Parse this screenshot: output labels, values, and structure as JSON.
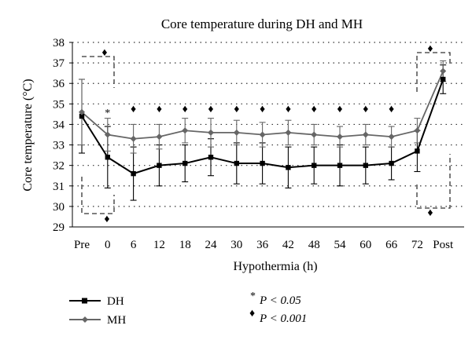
{
  "chart_data": {
    "type": "line",
    "title": "Core temperature during DH and MH",
    "xlabel": "Hypothermia (h)",
    "ylabel": "Core temperature (°C)",
    "categories": [
      "Pre",
      "0",
      "6",
      "12",
      "18",
      "24",
      "30",
      "36",
      "42",
      "48",
      "54",
      "60",
      "66",
      "72",
      "Post"
    ],
    "ylim": [
      29,
      38
    ],
    "yticks": [
      "29",
      "30",
      "31",
      "32",
      "33",
      "34",
      "35",
      "36",
      "37",
      "38"
    ],
    "grid": "dotted horizontal",
    "series": [
      {
        "name": "DH",
        "marker": "square",
        "color": "#000000",
        "values": [
          34.4,
          32.4,
          31.6,
          32.0,
          32.1,
          32.4,
          32.1,
          32.1,
          31.9,
          32.0,
          32.0,
          32.0,
          32.1,
          32.7,
          36.2
        ],
        "error": [
          1.8,
          1.5,
          1.3,
          1.0,
          0.9,
          0.9,
          1.0,
          1.0,
          1.0,
          0.9,
          1.0,
          0.9,
          0.8,
          1.0,
          0.7
        ]
      },
      {
        "name": "MH",
        "marker": "diamond",
        "color": "#666666",
        "values": [
          34.6,
          33.5,
          33.3,
          33.4,
          33.7,
          33.6,
          33.6,
          33.5,
          33.6,
          33.5,
          33.4,
          33.5,
          33.4,
          33.7,
          36.6
        ],
        "error": [
          1.6,
          0.8,
          0.7,
          0.6,
          0.6,
          0.7,
          0.6,
          0.6,
          0.6,
          0.5,
          0.5,
          0.5,
          0.5,
          0.6,
          0.5
        ]
      }
    ],
    "significance_markers": [
      {
        "symbol": "♦",
        "category_index": 0,
        "position": "above-box"
      },
      {
        "symbol": "♦",
        "category_index": 0,
        "position": "below-box"
      },
      {
        "symbol": "*",
        "category_index": 1,
        "position": "above"
      },
      {
        "symbol": "♦",
        "category_index": 2,
        "position": "above"
      },
      {
        "symbol": "♦",
        "category_index": 3,
        "position": "above"
      },
      {
        "symbol": "♦",
        "category_index": 4,
        "position": "above"
      },
      {
        "symbol": "♦",
        "category_index": 5,
        "position": "above"
      },
      {
        "symbol": "♦",
        "category_index": 6,
        "position": "above"
      },
      {
        "symbol": "♦",
        "category_index": 7,
        "position": "above"
      },
      {
        "symbol": "♦",
        "category_index": 8,
        "position": "above"
      },
      {
        "symbol": "♦",
        "category_index": 9,
        "position": "above"
      },
      {
        "symbol": "♦",
        "category_index": 10,
        "position": "above"
      },
      {
        "symbol": "♦",
        "category_index": 11,
        "position": "above"
      },
      {
        "symbol": "♦",
        "category_index": 12,
        "position": "above"
      },
      {
        "symbol": "♦",
        "category_index": 14,
        "position": "above-box"
      },
      {
        "symbol": "♦",
        "category_index": 14,
        "position": "below-box"
      }
    ],
    "legend": {
      "placement": "bottom",
      "entries": [
        {
          "label": "DH",
          "series": 0
        },
        {
          "label": "MH",
          "series": 1
        }
      ],
      "notes": [
        {
          "symbol": "*",
          "text": "P < 0.05"
        },
        {
          "symbol": "♦",
          "text": "P < 0.001"
        }
      ]
    }
  }
}
